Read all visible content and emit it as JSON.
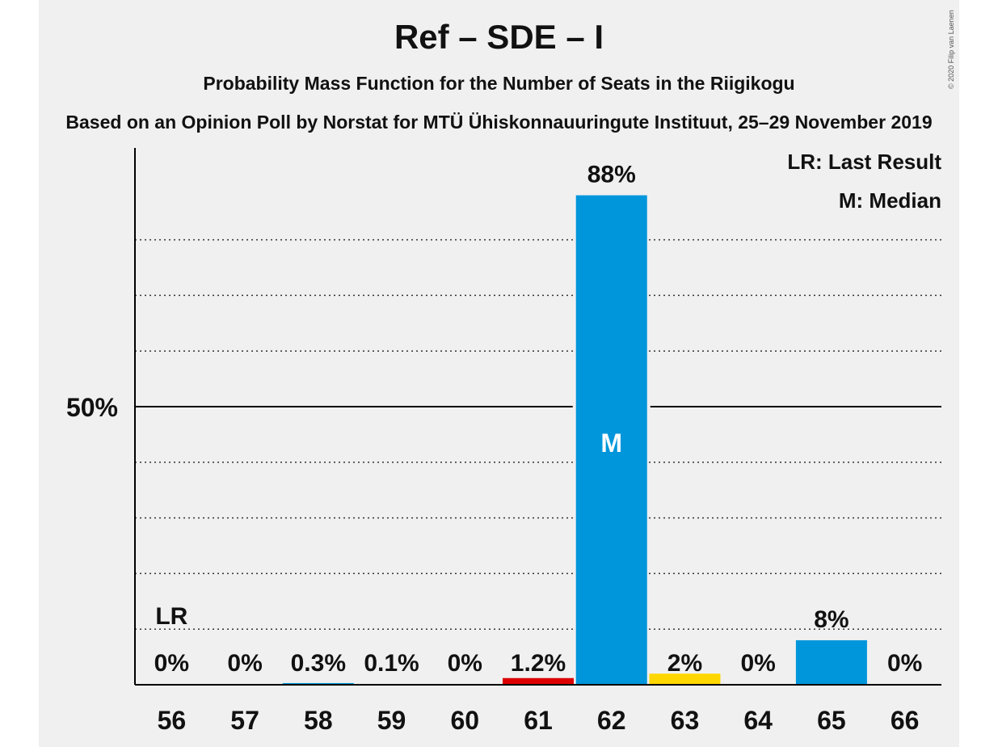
{
  "title": "Ref – SDE – I",
  "subtitle": "Probability Mass Function for the Number of Seats in the Riigikogu",
  "source_line": "Based on an Opinion Poll by Norstat for MTÜ Ühiskonnauuringute Instituut, 25–29 November 2019",
  "copyright": "© 2020 Filip van Laenen",
  "legend": {
    "last_result": "LR: Last Result",
    "median": "M: Median"
  },
  "chart_data": {
    "type": "bar",
    "categories": [
      "56",
      "57",
      "58",
      "59",
      "60",
      "61",
      "62",
      "63",
      "64",
      "65",
      "66"
    ],
    "values": [
      0,
      0,
      0.3,
      0.1,
      0,
      1.2,
      88,
      2,
      0,
      8,
      0
    ],
    "value_labels": [
      "0%",
      "0%",
      "0.3%",
      "0.1%",
      "0%",
      "1.2%",
      "88%",
      "2%",
      "0%",
      "8%",
      "0%"
    ],
    "bar_colors": [
      "#0096db",
      "#0096db",
      "#0096db",
      "#0096db",
      "#0096db",
      "#dd0000",
      "#0096db",
      "#ffd700",
      "#0096db",
      "#0096db",
      "#0096db"
    ],
    "ylim": [
      0,
      100
    ],
    "y_tick_label": "50%",
    "y_tick_value": 50,
    "gridlines": [
      10,
      20,
      30,
      40,
      60,
      70,
      80
    ],
    "last_result_seat": "56",
    "last_result_label": "LR",
    "median_seat": "62",
    "median_label": "M",
    "legend_position": "top-right"
  }
}
